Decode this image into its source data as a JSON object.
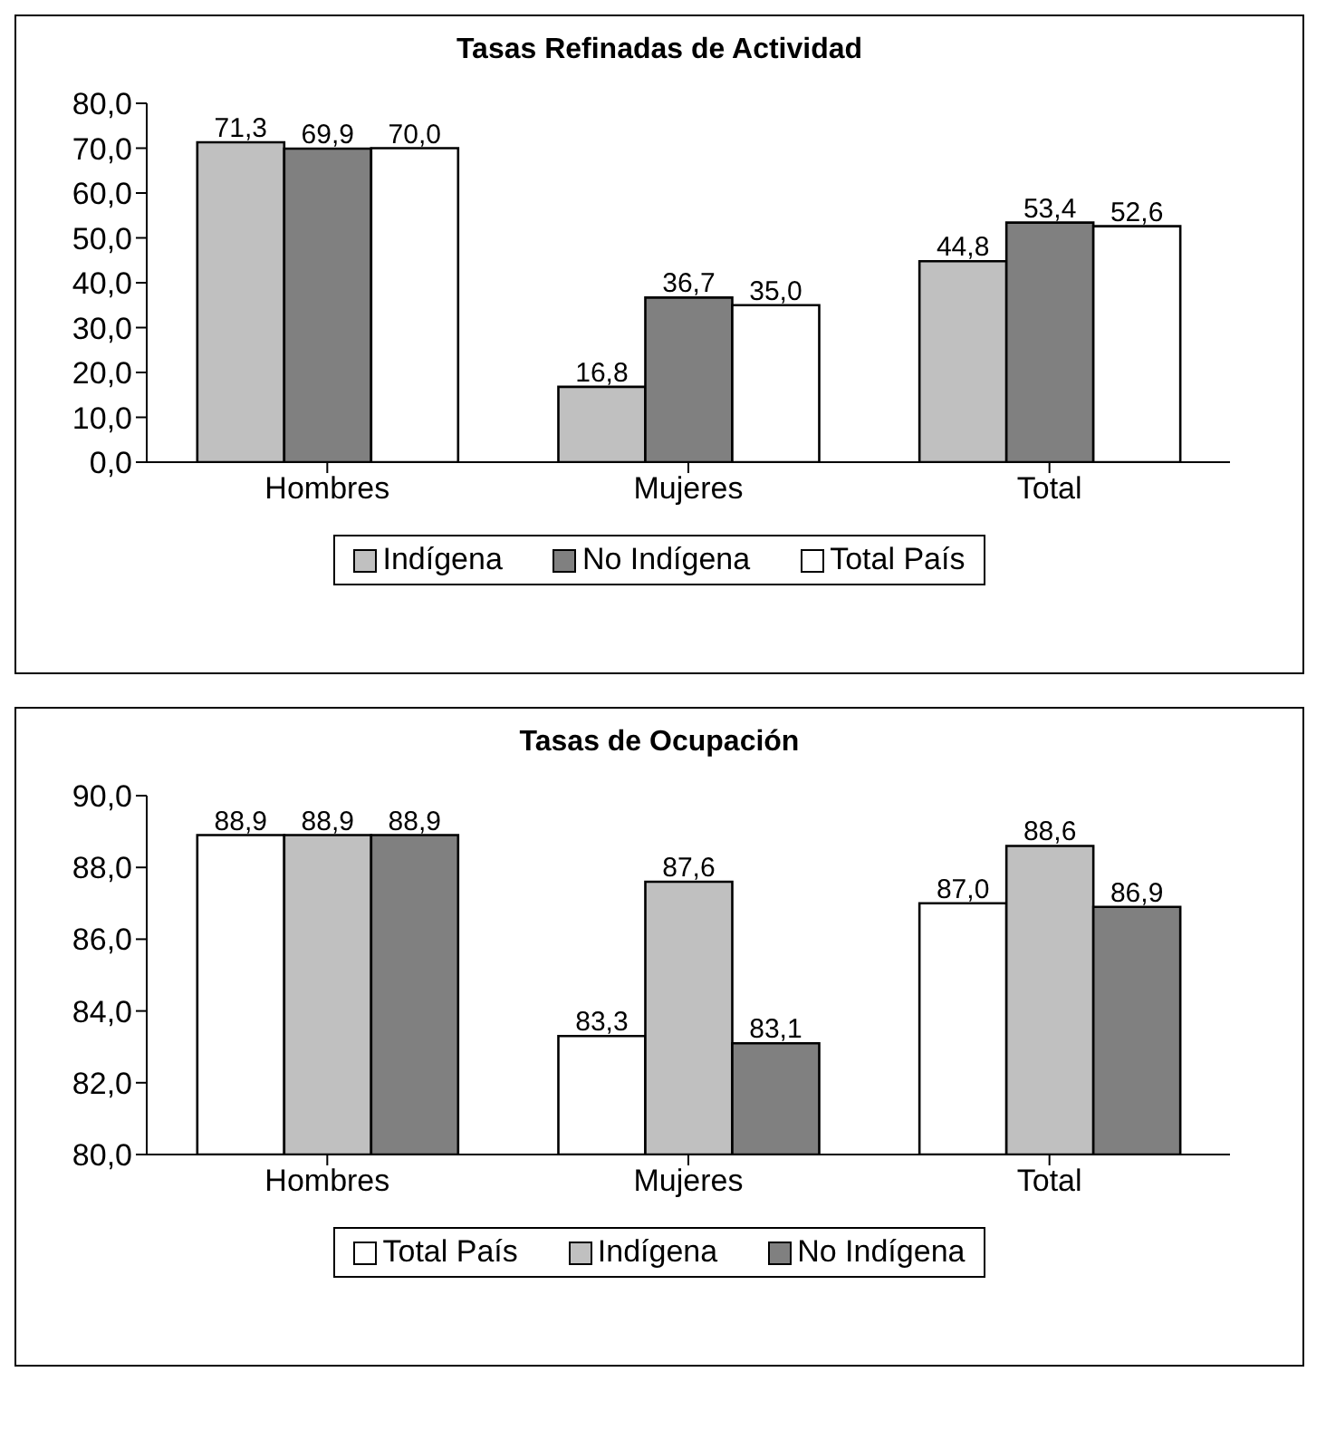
{
  "chart_data": [
    {
      "type": "bar",
      "title": "Tasas Refinadas de Actividad",
      "categories": [
        "Hombres",
        "Mujeres",
        "Total"
      ],
      "series": [
        {
          "name": "Indígena",
          "color": "#c0c0c0",
          "values": [
            71.3,
            16.8,
            44.8
          ],
          "value_labels": [
            "71,3",
            "16,8",
            "44,8"
          ]
        },
        {
          "name": "No Indígena",
          "color": "#808080",
          "values": [
            69.9,
            36.7,
            53.4
          ],
          "value_labels": [
            "69,9",
            "36,7",
            "53,4"
          ]
        },
        {
          "name": "Total País",
          "color": "#ffffff",
          "values": [
            70.0,
            35.0,
            52.6
          ],
          "value_labels": [
            "70,0",
            "35,0",
            "52,6"
          ]
        }
      ],
      "ylim": [
        0,
        80
      ],
      "yticks": [
        {
          "value": 0,
          "label": "0,0"
        },
        {
          "value": 10,
          "label": "10,0"
        },
        {
          "value": 20,
          "label": "20,0"
        },
        {
          "value": 30,
          "label": "30,0"
        },
        {
          "value": 40,
          "label": "40,0"
        },
        {
          "value": 50,
          "label": "50,0"
        },
        {
          "value": 60,
          "label": "60,0"
        },
        {
          "value": 70,
          "label": "70,0"
        },
        {
          "value": 80,
          "label": "80,0"
        }
      ],
      "grid": false,
      "legend": "bottom"
    },
    {
      "type": "bar",
      "title": "Tasas de Ocupación",
      "categories": [
        "Hombres",
        "Mujeres",
        "Total"
      ],
      "series": [
        {
          "name": "Total País",
          "color": "#ffffff",
          "values": [
            88.9,
            83.3,
            87.0
          ],
          "value_labels": [
            "88,9",
            "83,3",
            "87,0"
          ]
        },
        {
          "name": "Indígena",
          "color": "#c0c0c0",
          "values": [
            88.9,
            87.6,
            88.6
          ],
          "value_labels": [
            "88,9",
            "87,6",
            "88,6"
          ]
        },
        {
          "name": "No Indígena",
          "color": "#808080",
          "values": [
            88.9,
            83.1,
            86.9
          ],
          "value_labels": [
            "88,9",
            "83,1",
            "86,9"
          ]
        }
      ],
      "ylim": [
        80,
        90
      ],
      "yticks": [
        {
          "value": 80,
          "label": "80,0"
        },
        {
          "value": 82,
          "label": "82,0"
        },
        {
          "value": 84,
          "label": "84,0"
        },
        {
          "value": 86,
          "label": "86,0"
        },
        {
          "value": 88,
          "label": "88,0"
        },
        {
          "value": 90,
          "label": "90,0"
        }
      ],
      "grid": false,
      "legend": "bottom"
    }
  ]
}
